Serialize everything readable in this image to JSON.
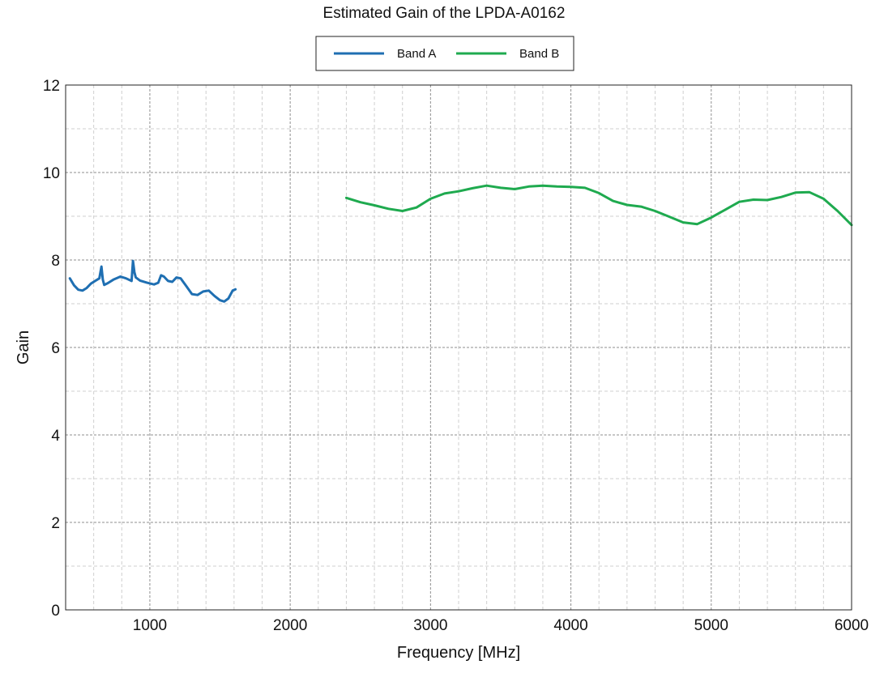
{
  "chart_data": {
    "type": "line",
    "title": "Estimated Gain of the LPDA-A0162",
    "xlabel": "Frequency [MHz]",
    "ylabel": "Gain",
    "xlim": [
      400,
      6000
    ],
    "ylim": [
      0,
      12
    ],
    "x_ticks": [
      1000,
      2000,
      3000,
      4000,
      5000,
      6000
    ],
    "y_ticks": [
      0,
      2,
      4,
      6,
      8,
      10,
      12
    ],
    "grid": true,
    "legend_position": "top-center",
    "series": [
      {
        "name": "Band A",
        "color": "#1f6fb2",
        "x": [
          430,
          460,
          490,
          520,
          550,
          580,
          610,
          640,
          655,
          665,
          675,
          700,
          740,
          790,
          830,
          870,
          880,
          890,
          900,
          930,
          980,
          1030,
          1060,
          1080,
          1100,
          1130,
          1160,
          1190,
          1220,
          1260,
          1300,
          1340,
          1380,
          1420,
          1460,
          1500,
          1530,
          1560,
          1590,
          1610
        ],
        "y": [
          7.58,
          7.42,
          7.32,
          7.3,
          7.36,
          7.46,
          7.52,
          7.58,
          7.85,
          7.55,
          7.43,
          7.47,
          7.55,
          7.62,
          7.58,
          7.52,
          7.98,
          7.72,
          7.6,
          7.53,
          7.48,
          7.44,
          7.48,
          7.65,
          7.62,
          7.52,
          7.5,
          7.6,
          7.58,
          7.4,
          7.22,
          7.2,
          7.28,
          7.3,
          7.18,
          7.08,
          7.05,
          7.12,
          7.3,
          7.33
        ]
      },
      {
        "name": "Band B",
        "color": "#1faa4f",
        "x": [
          2400,
          2500,
          2600,
          2700,
          2800,
          2900,
          3000,
          3100,
          3200,
          3300,
          3400,
          3500,
          3600,
          3700,
          3800,
          3900,
          4000,
          4100,
          4200,
          4300,
          4400,
          4500,
          4600,
          4700,
          4800,
          4900,
          5000,
          5100,
          5200,
          5300,
          5400,
          5500,
          5600,
          5700,
          5800,
          5900,
          6000
        ],
        "y": [
          9.42,
          9.32,
          9.25,
          9.17,
          9.12,
          9.2,
          9.4,
          9.52,
          9.57,
          9.64,
          9.7,
          9.65,
          9.62,
          9.68,
          9.7,
          9.68,
          9.67,
          9.65,
          9.53,
          9.35,
          9.26,
          9.22,
          9.12,
          8.99,
          8.86,
          8.82,
          8.97,
          9.15,
          9.33,
          9.38,
          9.37,
          9.44,
          9.54,
          9.55,
          9.4,
          9.12,
          8.8
        ]
      }
    ]
  }
}
